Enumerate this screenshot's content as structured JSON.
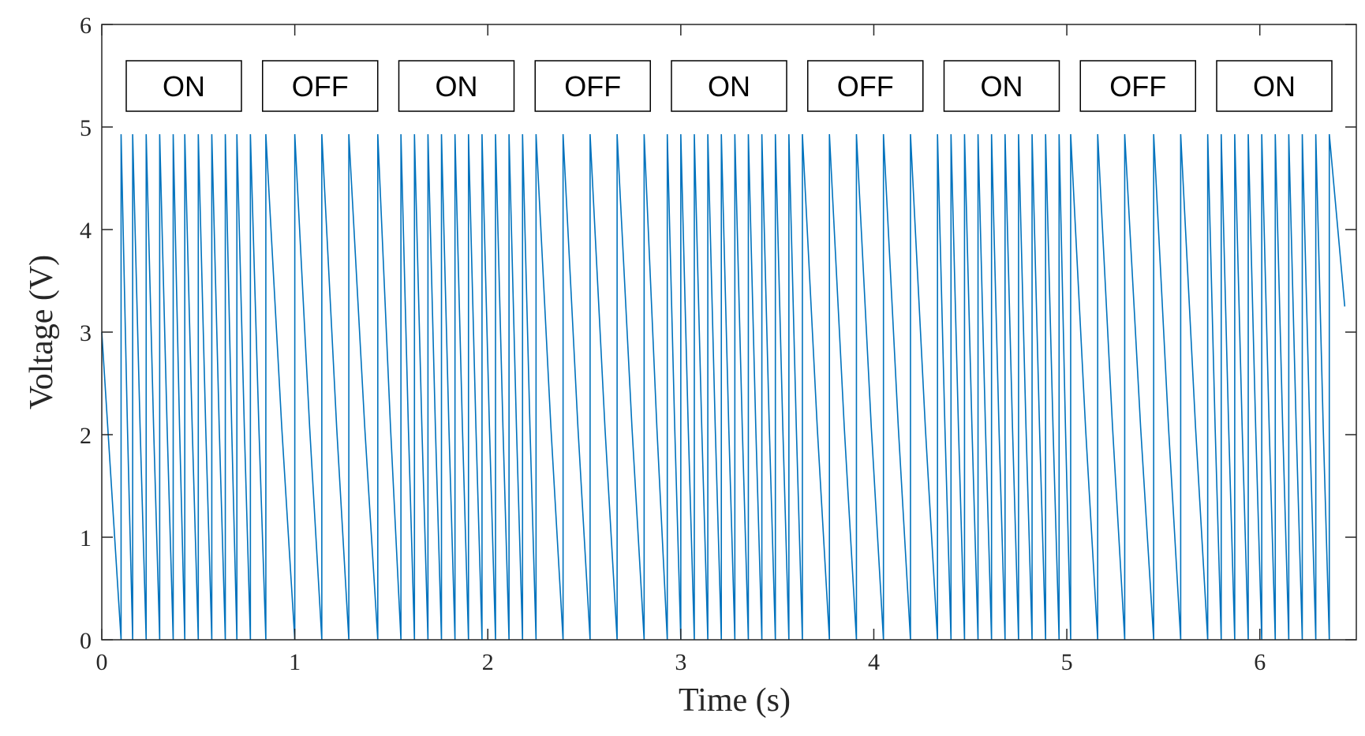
{
  "chart_data": {
    "type": "line",
    "title": "",
    "xlabel": "Time (s)",
    "ylabel": "Voltage (V)",
    "xlim": [
      0,
      6.5
    ],
    "ylim": [
      0,
      6
    ],
    "xticks": [
      0,
      1,
      2,
      3,
      4,
      5,
      6
    ],
    "yticks": [
      0,
      1,
      2,
      3,
      4,
      5,
      6
    ],
    "grid": false,
    "line_color": "#0072BD",
    "series": [
      {
        "description_values": "sawtooth discharge: jumps to ~4.93 V then decays to 0 V",
        "peak_voltage": 4.93,
        "start_voltage": 3.0,
        "end_voltage": 3.25,
        "segments": [
          {
            "state": "ON",
            "t_start": 0.0,
            "t_end": 0.84,
            "spike_times": [
              0.1,
              0.16,
              0.23,
              0.3,
              0.37,
              0.43,
              0.5,
              0.57,
              0.64,
              0.7,
              0.77
            ]
          },
          {
            "state": "OFF",
            "t_start": 0.84,
            "t_end": 1.55,
            "spike_times": [
              0.85,
              1.0,
              1.14,
              1.28
            ]
          },
          {
            "state": "ON",
            "t_start": 1.55,
            "t_end": 2.32,
            "spike_times": [
              1.43,
              1.55,
              1.62,
              1.69,
              1.76,
              1.83,
              1.9,
              1.97,
              2.04,
              2.11,
              2.18
            ]
          },
          {
            "state": "OFF",
            "t_start": 2.32,
            "t_end": 2.95,
            "spike_times": [
              2.25,
              2.39,
              2.53,
              2.67,
              2.81
            ]
          },
          {
            "state": "ON",
            "t_start": 2.95,
            "t_end": 3.67,
            "spike_times": [
              2.93,
              3.0,
              3.07,
              3.14,
              3.21,
              3.28,
              3.35,
              3.42,
              3.49,
              3.56
            ]
          },
          {
            "state": "OFF",
            "t_start": 3.67,
            "t_end": 4.35,
            "spike_times": [
              3.63,
              3.77,
              3.91,
              4.05,
              4.19
            ]
          },
          {
            "state": "ON",
            "t_start": 4.35,
            "t_end": 5.05,
            "spike_times": [
              4.33,
              4.4,
              4.47,
              4.54,
              4.61,
              4.68,
              4.75,
              4.82,
              4.89,
              4.96
            ]
          },
          {
            "state": "OFF",
            "t_start": 5.05,
            "t_end": 5.75,
            "spike_times": [
              5.02,
              5.16,
              5.3,
              5.45,
              5.59
            ]
          },
          {
            "state": "ON",
            "t_start": 5.75,
            "t_end": 6.42,
            "spike_times": [
              5.73,
              5.8,
              5.87,
              5.94,
              6.01,
              6.08,
              6.15,
              6.22,
              6.29,
              6.36
            ]
          }
        ]
      }
    ],
    "state_labels": [
      "ON",
      "OFF",
      "ON",
      "OFF",
      "ON",
      "OFF",
      "ON",
      "OFF",
      "ON"
    ]
  }
}
